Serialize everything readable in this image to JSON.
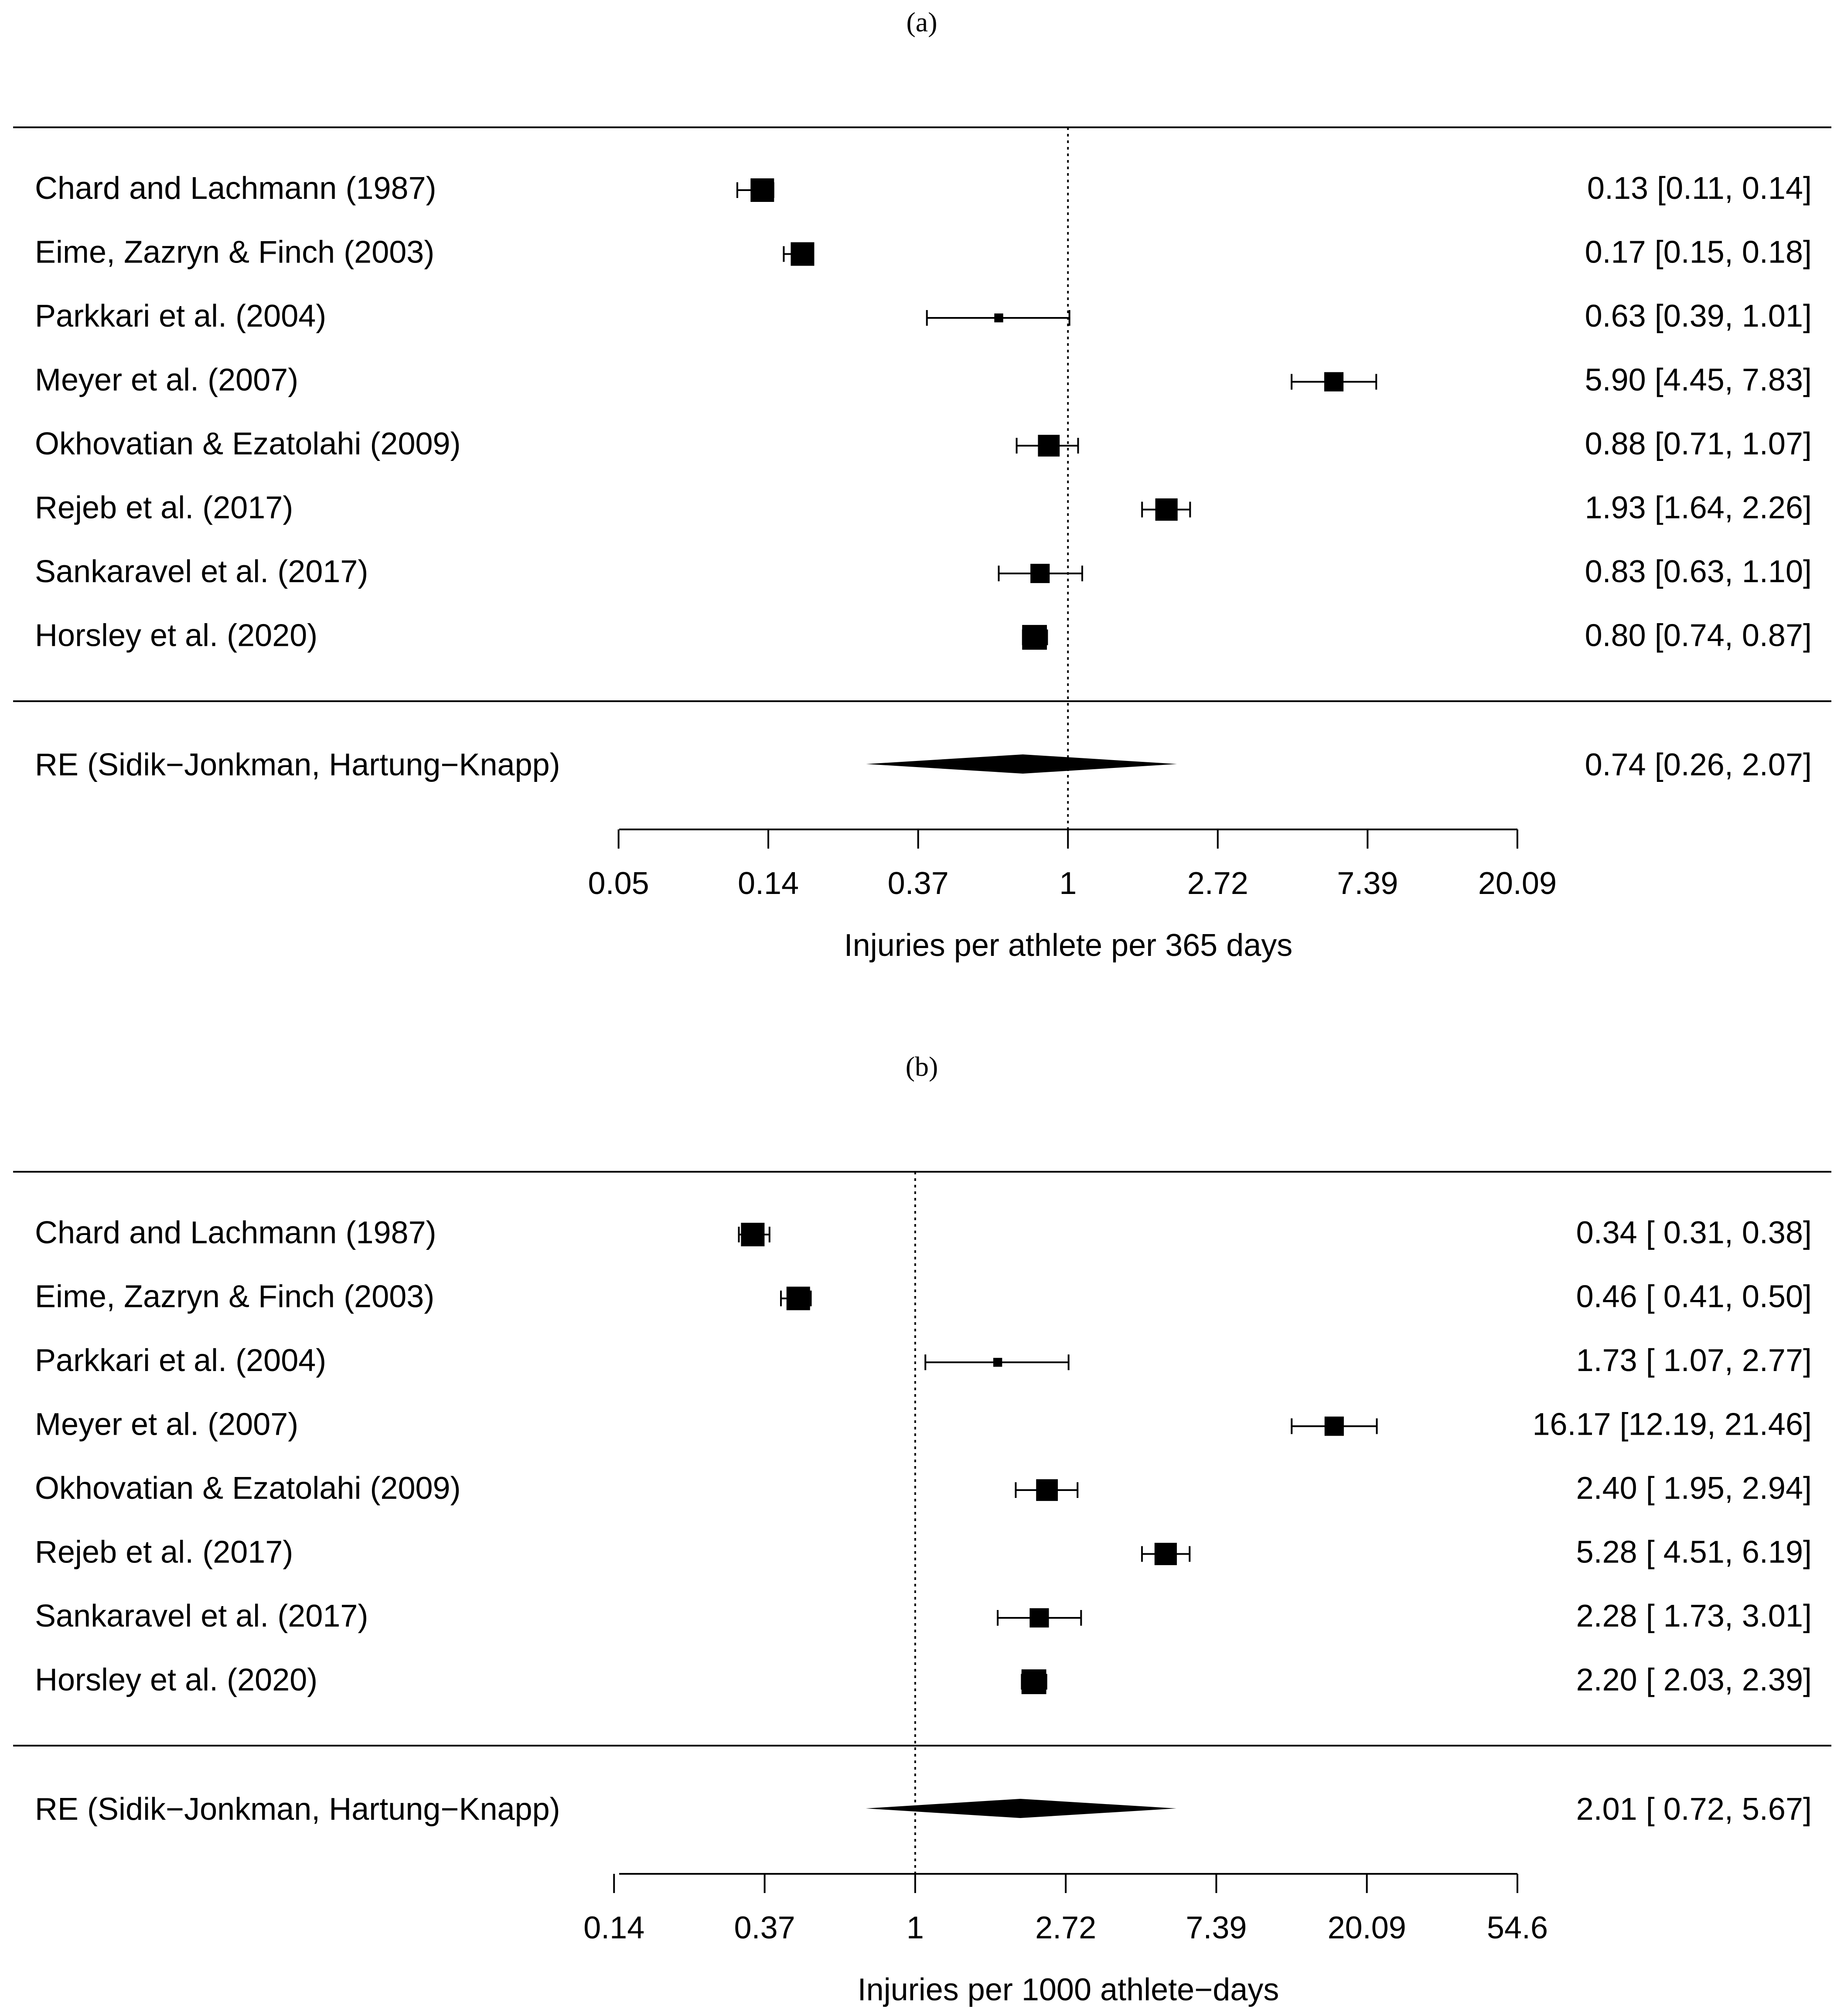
{
  "chart_data": [
    {
      "type": "forest",
      "panel": "(a)",
      "xlabel": "Injuries per athlete per 365 days",
      "scale": "log",
      "xlim": [
        0.05,
        20.09
      ],
      "ticks": [
        {
          "label": "0.05",
          "value": 0.0498
        },
        {
          "label": "0.14",
          "value": 0.1353
        },
        {
          "label": "0.37",
          "value": 0.3679
        },
        {
          "label": "1",
          "value": 1
        },
        {
          "label": "2.72",
          "value": 2.7183
        },
        {
          "label": "7.39",
          "value": 7.3891
        },
        {
          "label": "20.09",
          "value": 20.0855
        }
      ],
      "reference_line": 1,
      "studies": [
        {
          "name": "Chard and Lachmann (1987)",
          "est": 0.13,
          "lo": 0.11,
          "hi": 0.14,
          "ci_text": "0.13 [0.11, 0.14]",
          "weight": 3
        },
        {
          "name": "Eime, Zazryn & Finch (2003)",
          "est": 0.17,
          "lo": 0.15,
          "hi": 0.18,
          "ci_text": "0.17 [0.15, 0.18]",
          "weight": 3
        },
        {
          "name": "Parkkari et al. (2004)",
          "est": 0.63,
          "lo": 0.39,
          "hi": 1.01,
          "ci_text": "0.63 [0.39, 1.01]",
          "weight": 0.6
        },
        {
          "name": "Meyer et al. (2007)",
          "est": 5.9,
          "lo": 4.45,
          "hi": 7.83,
          "ci_text": "5.90 [4.45, 7.83]",
          "weight": 2.3
        },
        {
          "name": "Okhovatian & Ezatolahi (2009)",
          "est": 0.88,
          "lo": 0.71,
          "hi": 1.07,
          "ci_text": "0.88 [0.71, 1.07]",
          "weight": 2.7
        },
        {
          "name": "Rejeb et al. (2017)",
          "est": 1.93,
          "lo": 1.64,
          "hi": 2.26,
          "ci_text": "1.93 [1.64, 2.26]",
          "weight": 2.8
        },
        {
          "name": "Sankaravel et al. (2017)",
          "est": 0.83,
          "lo": 0.63,
          "hi": 1.1,
          "ci_text": "0.83 [0.63, 1.10]",
          "weight": 2.3
        },
        {
          "name": "Horsley et al. (2020)",
          "est": 0.8,
          "lo": 0.74,
          "hi": 0.87,
          "ci_text": "0.80 [0.74, 0.87]",
          "weight": 3.2
        }
      ],
      "summary": {
        "name": "RE (Sidik−Jonkman, Hartung−Knapp)",
        "est": 0.74,
        "lo": 0.26,
        "hi": 2.07,
        "ci_text": "0.74 [0.26, 2.07]"
      }
    },
    {
      "type": "forest",
      "panel": "(b)",
      "xlabel": "Injuries per  1000 athlete−days",
      "scale": "log",
      "xlim": [
        0.14,
        54.6
      ],
      "ticks": [
        {
          "label": "0.14",
          "value": 0.1353
        },
        {
          "label": "0.37",
          "value": 0.3679
        },
        {
          "label": "1",
          "value": 1
        },
        {
          "label": "2.72",
          "value": 2.7183
        },
        {
          "label": "7.39",
          "value": 7.3891
        },
        {
          "label": "20.09",
          "value": 20.0855
        },
        {
          "label": "54.6",
          "value": 54.598
        }
      ],
      "reference_line": 1,
      "studies": [
        {
          "name": "Chard and Lachmann (1987)",
          "est": 0.34,
          "lo": 0.31,
          "hi": 0.38,
          "ci_text": "0.34 [ 0.31,  0.38]",
          "weight": 3
        },
        {
          "name": "Eime, Zazryn & Finch (2003)",
          "est": 0.46,
          "lo": 0.41,
          "hi": 0.5,
          "ci_text": "0.46 [ 0.41,  0.50]",
          "weight": 3
        },
        {
          "name": "Parkkari et al. (2004)",
          "est": 1.73,
          "lo": 1.07,
          "hi": 2.77,
          "ci_text": "1.73 [ 1.07,  2.77]",
          "weight": 0.6
        },
        {
          "name": "Meyer et al. (2007)",
          "est": 16.17,
          "lo": 12.19,
          "hi": 21.46,
          "ci_text": "16.17 [12.19, 21.46]",
          "weight": 2.3
        },
        {
          "name": "Okhovatian & Ezatolahi (2009)",
          "est": 2.4,
          "lo": 1.95,
          "hi": 2.94,
          "ci_text": "2.40 [ 1.95,  2.94]",
          "weight": 2.7
        },
        {
          "name": "Rejeb et al. (2017)",
          "est": 5.28,
          "lo": 4.51,
          "hi": 6.19,
          "ci_text": "5.28 [ 4.51,  6.19]",
          "weight": 2.8
        },
        {
          "name": "Sankaravel et al. (2017)",
          "est": 2.28,
          "lo": 1.73,
          "hi": 3.01,
          "ci_text": "2.28 [ 1.73,  3.01]",
          "weight": 2.3
        },
        {
          "name": "Horsley et al. (2020)",
          "est": 2.2,
          "lo": 2.03,
          "hi": 2.39,
          "ci_text": "2.20 [ 2.03,  2.39]",
          "weight": 3.2
        }
      ],
      "summary": {
        "name": "RE (Sidik−Jonkman, Hartung−Knapp)",
        "est": 2.01,
        "lo": 0.72,
        "hi": 5.67,
        "ci_text": "2.01 [ 0.72,  5.67]"
      }
    }
  ]
}
